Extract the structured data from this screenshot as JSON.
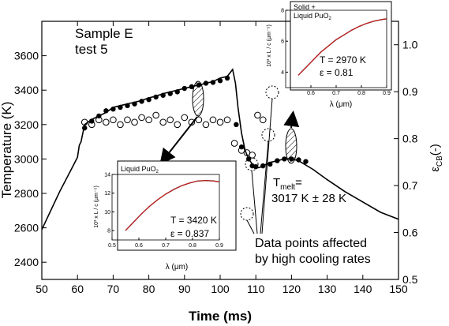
{
  "chart_data": {
    "type": "line",
    "xlabel": "Time (ms)",
    "ylabel": "Temperature (K)",
    "y2label": "ε",
    "y2label_sub": "CB",
    "y2label_suffix": "(-)",
    "xlim": [
      50,
      150
    ],
    "ylim": [
      2300,
      3800
    ],
    "y2lim": [
      0.5,
      1.05
    ],
    "xticks": [
      50,
      60,
      70,
      80,
      90,
      100,
      110,
      120,
      130,
      140,
      150
    ],
    "yticks": [
      2400,
      2600,
      2800,
      3000,
      3200,
      3400,
      3600
    ],
    "y2ticks": [
      0.5,
      0.6,
      0.7,
      0.8,
      0.9,
      1.0
    ],
    "sample_label_1": "Sample E",
    "sample_label_2": "test 5",
    "series": [
      {
        "kind": "temperature",
        "x": [
          50,
          55,
          58,
          60,
          60.5,
          61,
          62,
          64,
          66,
          68,
          70,
          72,
          74,
          76,
          78,
          80,
          82,
          84,
          86,
          88,
          90,
          92,
          94,
          96,
          98,
          100,
          102,
          103.5,
          104.3,
          105,
          106,
          107,
          108,
          109,
          110,
          111,
          112,
          113,
          114,
          116,
          118,
          120,
          122,
          126,
          130,
          135,
          140,
          145,
          150
        ],
        "y": [
          2590,
          2810,
          2930,
          3010,
          3080,
          3100,
          3200,
          3230,
          3250,
          3270,
          3300,
          3310,
          3320,
          3330,
          3340,
          3355,
          3365,
          3380,
          3390,
          3400,
          3410,
          3420,
          3430,
          3440,
          3450,
          3470,
          3480,
          3520,
          3440,
          3300,
          3150,
          3050,
          3000,
          2970,
          2950,
          2950,
          2960,
          2970,
          2980,
          2990,
          3000,
          3000,
          2990,
          2940,
          2880,
          2810,
          2750,
          2690,
          2650
        ]
      },
      {
        "kind": "temperature_points",
        "x": [
          62,
          64,
          66,
          68,
          70,
          72,
          74,
          76,
          78,
          80,
          82,
          84,
          86,
          88,
          90,
          92,
          94,
          96,
          98,
          100,
          102,
          104.5,
          106,
          108,
          109,
          110,
          112,
          114,
          116,
          118,
          120,
          122,
          124
        ],
        "y": [
          3180,
          3220,
          3250,
          3280,
          3290,
          3300,
          3310,
          3320,
          3335,
          3345,
          3360,
          3370,
          3380,
          3390,
          3410,
          3420,
          3430,
          3440,
          3445,
          3455,
          3470,
          3200,
          3070,
          3000,
          2960,
          2955,
          2960,
          2970,
          2990,
          3000,
          3000,
          2995,
          2985
        ]
      },
      {
        "kind": "emissivity_points",
        "x": [
          62,
          64,
          66,
          68,
          70,
          72,
          74,
          76,
          78,
          80,
          82,
          84,
          86,
          88,
          90,
          92,
          94,
          96,
          98,
          100,
          102,
          104,
          106,
          107.5,
          109,
          110.5,
          112
        ],
        "y": [
          0.835,
          0.83,
          0.84,
          0.835,
          0.84,
          0.83,
          0.84,
          0.835,
          0.845,
          0.84,
          0.85,
          0.835,
          0.84,
          0.83,
          0.845,
          0.835,
          0.84,
          0.83,
          0.84,
          0.835,
          0.84,
          0.79,
          0.775,
          0.77,
          0.765,
          0.85,
          0.84
        ]
      }
    ],
    "annotations": {
      "tmelt_label": "T",
      "tmelt_sub": "melt",
      "tmelt_eq": "=",
      "tmelt_value": "3017 K ± 28 K",
      "affected_line1": "Data points affected",
      "affected_line2": "by high cooling rates"
    },
    "inset_liquid": {
      "title": "Liquid PuO",
      "title_sub": "2",
      "xlabel": "λ (μm)",
      "ylabel": "10³ x L / c (μm⁻⁵)",
      "xlim": [
        0.5,
        0.9
      ],
      "ylim": [
        7,
        14
      ],
      "xticks": [
        0.5,
        0.6,
        0.7,
        0.8,
        0.9
      ],
      "yticks": [
        8,
        10,
        12,
        14
      ],
      "T_text": "T = 3420 K",
      "eps_text": "ε = 0.837",
      "x": [
        0.55,
        0.58,
        0.61,
        0.64,
        0.67,
        0.7,
        0.73,
        0.76,
        0.79,
        0.82,
        0.85,
        0.88,
        0.9
      ],
      "y": [
        8.0,
        8.9,
        9.8,
        10.6,
        11.3,
        11.9,
        12.4,
        12.8,
        13.1,
        13.3,
        13.35,
        13.3,
        13.2
      ]
    },
    "inset_solid": {
      "title_line1": "Solid +",
      "title_line2": "Liquid PuO",
      "title_sub": "2",
      "xlabel": "λ (μm)",
      "ylabel": "10³ x L / c (μm⁻⁵)",
      "xlim": [
        0.5,
        0.9
      ],
      "ylim": [
        3,
        8
      ],
      "xticks": [
        0.6,
        0.7,
        0.8,
        0.9
      ],
      "yticks": [
        4,
        6,
        8
      ],
      "T_text": "T = 2970 K",
      "eps_text": "ε = 0.81",
      "x": [
        0.55,
        0.58,
        0.61,
        0.64,
        0.67,
        0.7,
        0.73,
        0.76,
        0.79,
        0.82,
        0.85,
        0.88,
        0.9
      ],
      "y": [
        3.8,
        4.3,
        4.8,
        5.3,
        5.7,
        6.1,
        6.4,
        6.7,
        6.95,
        7.15,
        7.3,
        7.4,
        7.45
      ]
    }
  }
}
